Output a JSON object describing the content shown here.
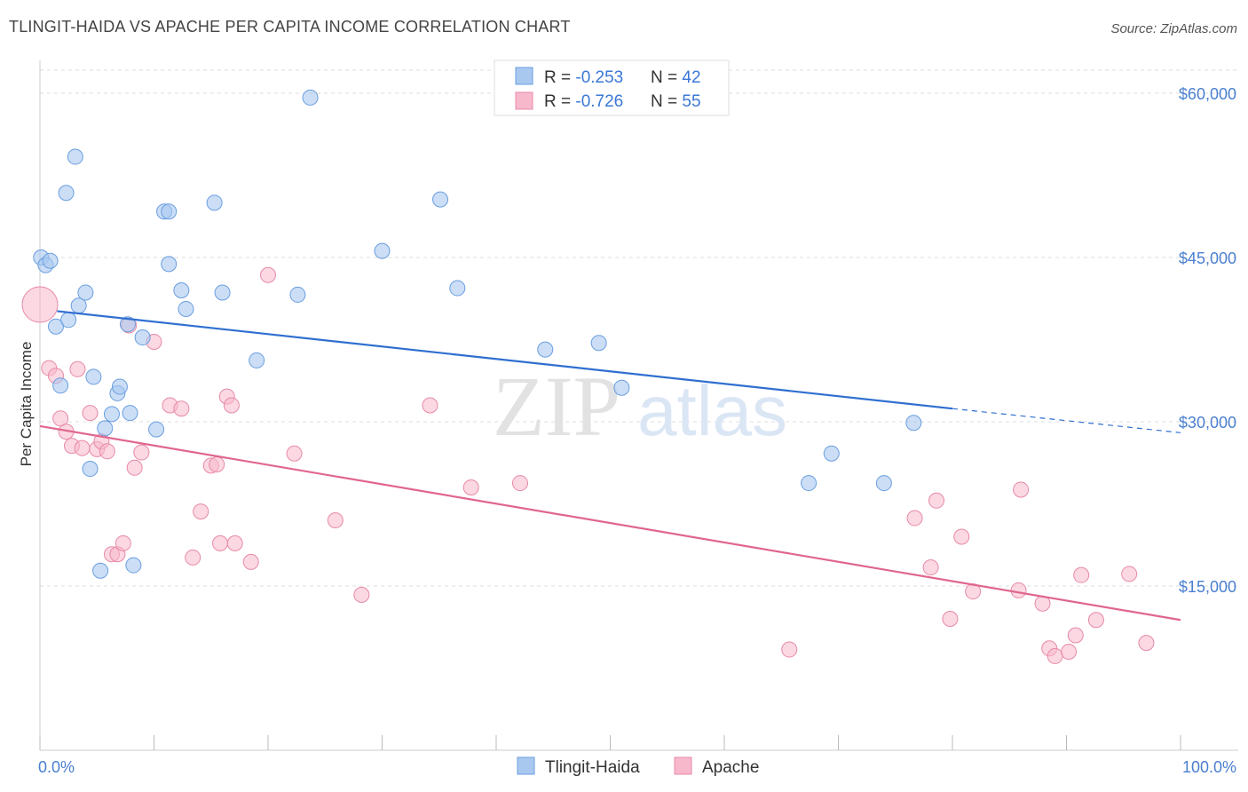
{
  "title": "TLINGIT-HAIDA VS APACHE PER CAPITA INCOME CORRELATION CHART",
  "source": "Source: ZipAtlas.com",
  "colors": {
    "blue_fill": "#a9c8f0",
    "blue_stroke": "#6a9ee0",
    "blue_line": "#2f6fd0",
    "pink_fill": "#f7b8cb",
    "pink_stroke": "#e88aa8",
    "pink_line": "#e0668e",
    "tick_label": "#4a7fd0",
    "grid": "#dddddd"
  },
  "legend": {
    "rows": [
      {
        "r_label": "R = ",
        "r_value": "-0.253",
        "n_label": "N = ",
        "n_value": "42"
      },
      {
        "r_label": "R = ",
        "r_value": "-0.726",
        "n_label": "N = ",
        "n_value": "55"
      }
    ]
  },
  "watermark": {
    "zip": "ZIP",
    "atlas": "atlas"
  },
  "chart_data": {
    "type": "scatter",
    "title": "TLINGIT-HAIDA VS APACHE PER CAPITA INCOME CORRELATION CHART",
    "xlabel": "",
    "ylabel": "Per Capita Income",
    "xlim": [
      0,
      100
    ],
    "ylim": [
      0,
      63000
    ],
    "x_tick_labels": [
      "0.0%",
      "100.0%"
    ],
    "y_ticks": [
      15000,
      30000,
      45000,
      60000
    ],
    "y_tick_labels": [
      "$15,000",
      "$30,000",
      "$45,000",
      "$60,000"
    ],
    "grid": true,
    "legend_position": "top-center",
    "series": [
      {
        "name": "Tlingit-Haida",
        "r": -0.253,
        "n": 42,
        "trend": {
          "x0": 1.5,
          "y0": 40100,
          "x1": 80,
          "y1": 31200,
          "dashed_to_x": 100,
          "dashed_to_y": 29000
        },
        "points": [
          [
            0.1,
            45000
          ],
          [
            0.5,
            44300
          ],
          [
            0.9,
            44700
          ],
          [
            1.4,
            38700
          ],
          [
            1.8,
            33300
          ],
          [
            2.3,
            50900
          ],
          [
            2.5,
            39300
          ],
          [
            3.1,
            54200
          ],
          [
            3.4,
            40600
          ],
          [
            4.0,
            41800
          ],
          [
            4.4,
            25700
          ],
          [
            4.7,
            34100
          ],
          [
            5.3,
            16400
          ],
          [
            5.7,
            29400
          ],
          [
            6.3,
            30700
          ],
          [
            6.8,
            32600
          ],
          [
            7.0,
            33200
          ],
          [
            7.7,
            38900
          ],
          [
            7.9,
            30800
          ],
          [
            8.2,
            16900
          ],
          [
            9.0,
            37700
          ],
          [
            10.2,
            29300
          ],
          [
            10.9,
            49200
          ],
          [
            11.3,
            49200
          ],
          [
            11.3,
            44400
          ],
          [
            12.4,
            42000
          ],
          [
            12.8,
            40300
          ],
          [
            15.3,
            50000
          ],
          [
            16.0,
            41800
          ],
          [
            19.0,
            35600
          ],
          [
            22.6,
            41600
          ],
          [
            23.7,
            59600
          ],
          [
            30.0,
            45600
          ],
          [
            35.1,
            50300
          ],
          [
            36.6,
            42200
          ],
          [
            44.3,
            36600
          ],
          [
            49.0,
            37200
          ],
          [
            51.0,
            33100
          ],
          [
            67.4,
            24400
          ],
          [
            69.4,
            27100
          ],
          [
            74.0,
            24400
          ],
          [
            76.6,
            29900
          ]
        ]
      },
      {
        "name": "Apache",
        "r": -0.726,
        "n": 55,
        "trend": {
          "x0": 0,
          "y0": 29600,
          "x1": 100,
          "y1": 11900
        },
        "points": [
          [
            0.0,
            40700
          ],
          [
            0.8,
            34900
          ],
          [
            1.4,
            34200
          ],
          [
            1.8,
            30300
          ],
          [
            2.3,
            29100
          ],
          [
            2.8,
            27800
          ],
          [
            3.3,
            34800
          ],
          [
            3.7,
            27600
          ],
          [
            4.4,
            30800
          ],
          [
            5.0,
            27500
          ],
          [
            5.4,
            28200
          ],
          [
            5.9,
            27300
          ],
          [
            6.3,
            17900
          ],
          [
            6.8,
            17900
          ],
          [
            7.3,
            18900
          ],
          [
            7.8,
            38800
          ],
          [
            8.3,
            25800
          ],
          [
            8.9,
            27200
          ],
          [
            10.0,
            37300
          ],
          [
            11.4,
            31500
          ],
          [
            12.4,
            31200
          ],
          [
            13.4,
            17600
          ],
          [
            14.1,
            21800
          ],
          [
            15.0,
            26000
          ],
          [
            15.5,
            26100
          ],
          [
            15.8,
            18900
          ],
          [
            16.4,
            32300
          ],
          [
            16.8,
            31500
          ],
          [
            17.1,
            18900
          ],
          [
            18.5,
            17200
          ],
          [
            20.0,
            43400
          ],
          [
            22.3,
            27100
          ],
          [
            25.9,
            21000
          ],
          [
            28.2,
            14200
          ],
          [
            34.2,
            31500
          ],
          [
            37.8,
            24000
          ],
          [
            42.1,
            24400
          ],
          [
            65.7,
            9200
          ],
          [
            76.7,
            21200
          ],
          [
            78.1,
            16700
          ],
          [
            78.6,
            22800
          ],
          [
            79.8,
            12000
          ],
          [
            80.8,
            19500
          ],
          [
            81.8,
            14500
          ],
          [
            85.8,
            14600
          ],
          [
            86.0,
            23800
          ],
          [
            87.9,
            13400
          ],
          [
            88.5,
            9300
          ],
          [
            89.0,
            8600
          ],
          [
            90.2,
            9000
          ],
          [
            90.8,
            10500
          ],
          [
            91.3,
            16000
          ],
          [
            92.6,
            11900
          ],
          [
            95.5,
            16100
          ],
          [
            97.0,
            9800
          ]
        ]
      }
    ]
  },
  "bottom_legend": [
    "Tlingit-Haida",
    "Apache"
  ]
}
